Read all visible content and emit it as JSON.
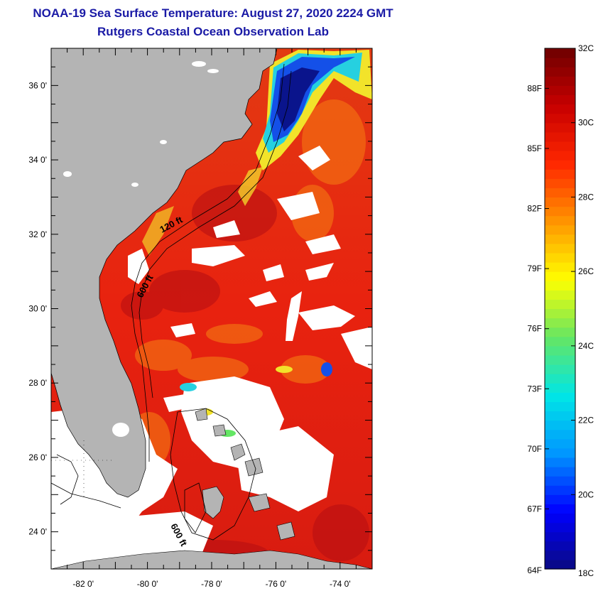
{
  "title": {
    "line1": "NOAA-19 Sea Surface Temperature:  August 27, 2020 2224 GMT",
    "line2": "Rutgers Coastal Ocean Observation Lab"
  },
  "map": {
    "lon_range": [
      -83,
      -73
    ],
    "lat_range": [
      23,
      37
    ],
    "lon_tick_labels": [
      {
        "lon": -82,
        "label": "-82 0'"
      },
      {
        "lon": -80,
        "label": "-80 0'"
      },
      {
        "lon": -78,
        "label": "-78 0'"
      },
      {
        "lon": -76,
        "label": "-76 0'"
      },
      {
        "lon": -74,
        "label": "-74 0'"
      }
    ],
    "lat_tick_labels": [
      {
        "lat": 36,
        "label": "36 0'"
      },
      {
        "lat": 34,
        "label": "34 0'"
      },
      {
        "lat": 32,
        "label": "32 0'"
      },
      {
        "lat": 30,
        "label": "30 0'"
      },
      {
        "lat": 28,
        "label": "28 0'"
      },
      {
        "lat": 26,
        "label": "26 0'"
      },
      {
        "lat": 24,
        "label": "24 0'"
      }
    ],
    "contour_labels": [
      {
        "text": "120 ft"
      },
      {
        "text": "600 ft"
      },
      {
        "text": "600 ft"
      }
    ],
    "colors": {
      "land": "#b4b4b4",
      "cloud": "#ffffff",
      "ocean_warm": "#e8220f"
    }
  },
  "colorbar": {
    "celsius_range": [
      18,
      32
    ],
    "fahrenheit_range": [
      64,
      90
    ],
    "celsius_labels": [
      "32C",
      "30C",
      "28C",
      "26C",
      "24C",
      "22C",
      "20C",
      "18C"
    ],
    "fahrenheit_labels": [
      "88F",
      "85F",
      "82F",
      "79F",
      "76F",
      "73F",
      "70F",
      "67F",
      "64F"
    ],
    "gradient_stops": [
      "#0a0a82",
      "#0000ff",
      "#0096ff",
      "#00e6e6",
      "#64e664",
      "#ffff00",
      "#ff9600",
      "#ff2800",
      "#c80000",
      "#6e0000"
    ]
  }
}
